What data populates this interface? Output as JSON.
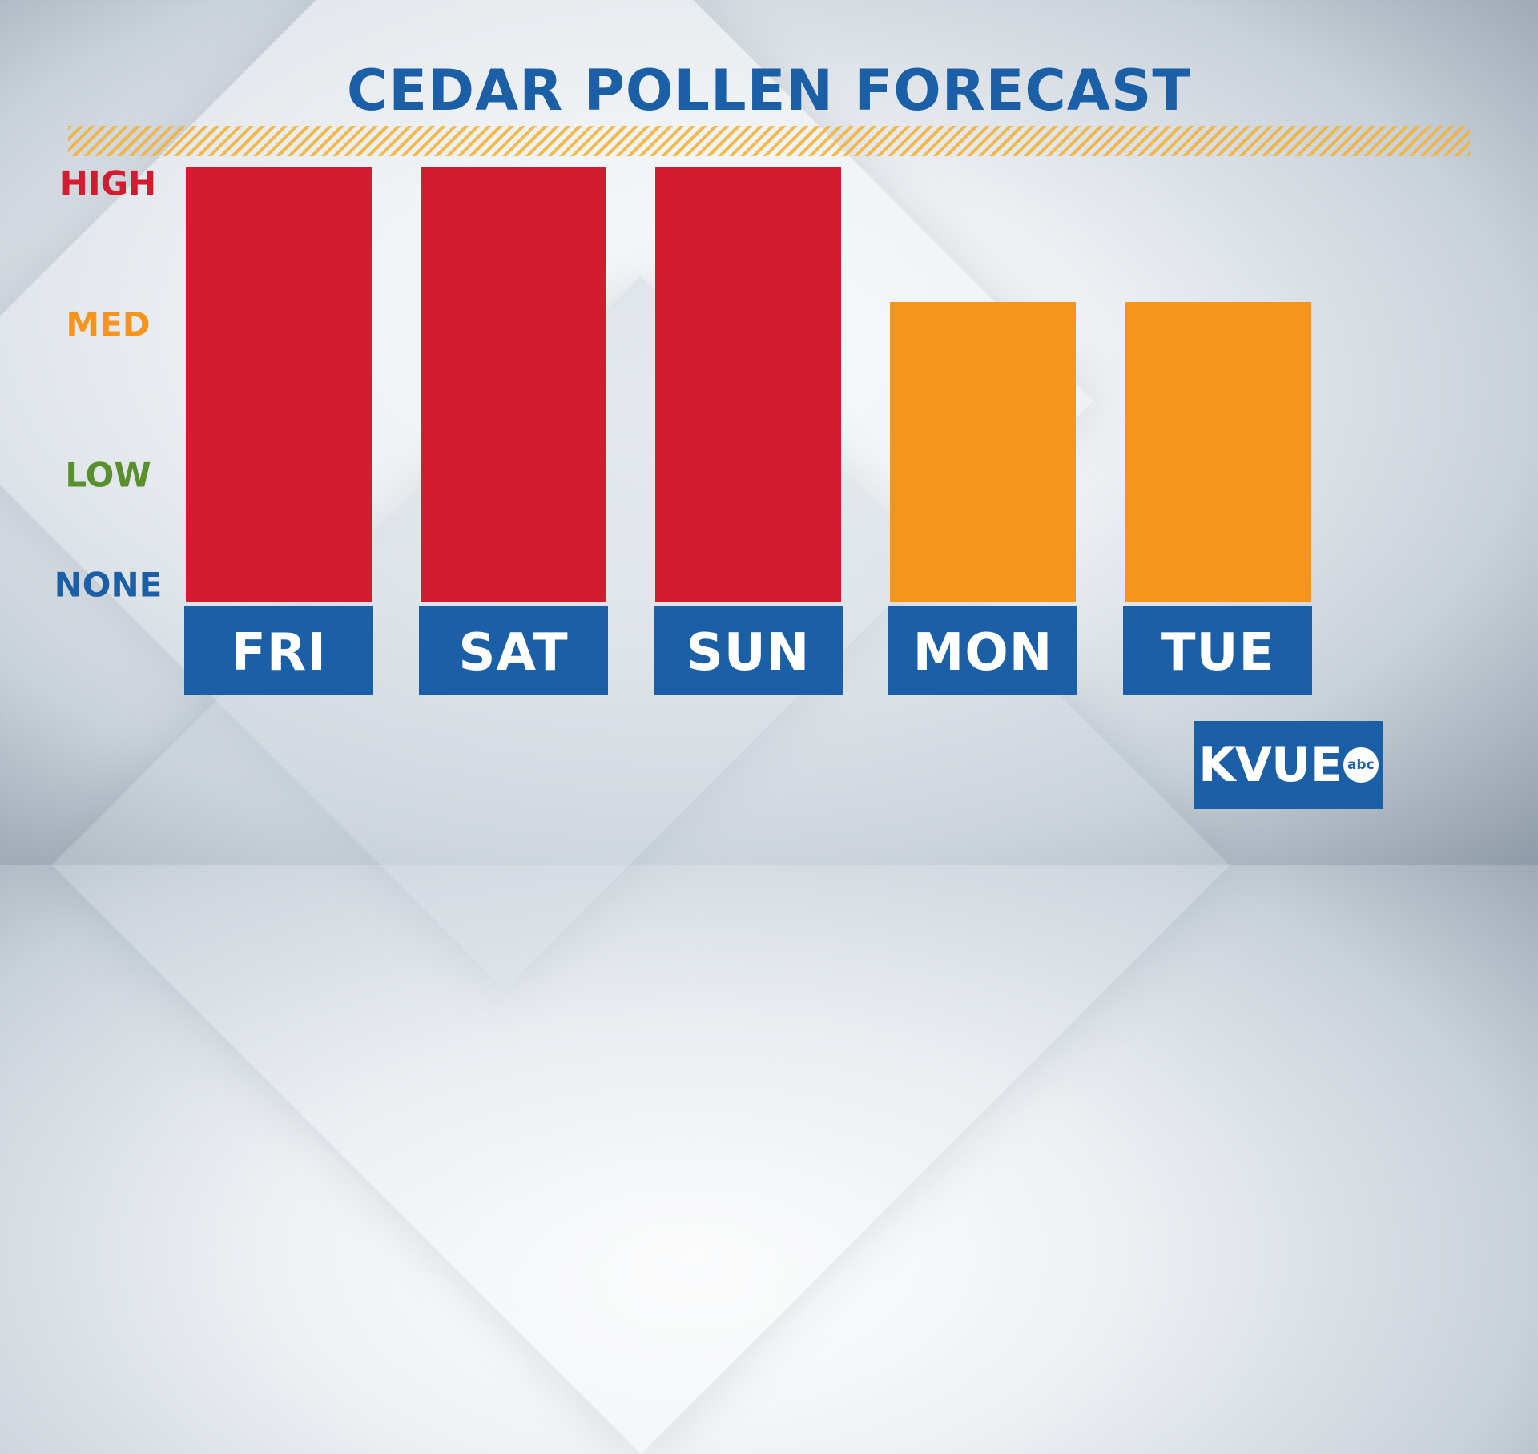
{
  "chart_data": {
    "type": "bar",
    "title": "CEDAR POLLEN FORECAST",
    "categories": [
      "FRI",
      "SAT",
      "SUN",
      "MON",
      "TUE"
    ],
    "levels": [
      {
        "label": "NONE",
        "value": 0,
        "color": "#1b5fa6"
      },
      {
        "label": "LOW",
        "value": 1,
        "color": "#5a8f2e"
      },
      {
        "label": "MED",
        "value": 2,
        "color": "#f7941d"
      },
      {
        "label": "HIGH",
        "value": 3,
        "color": "#d41c30"
      }
    ],
    "values": [
      3,
      3,
      3,
      2,
      2
    ],
    "bar_colors": [
      "#d41c30",
      "#d41c30",
      "#d41c30",
      "#f7941d",
      "#f7941d"
    ],
    "ylim": [
      0,
      3
    ]
  },
  "theme": {
    "title_color": "#1b5fa6",
    "day_box_color": "#1b5fa6"
  },
  "logo": {
    "text": "KVUE",
    "network": "abc"
  }
}
